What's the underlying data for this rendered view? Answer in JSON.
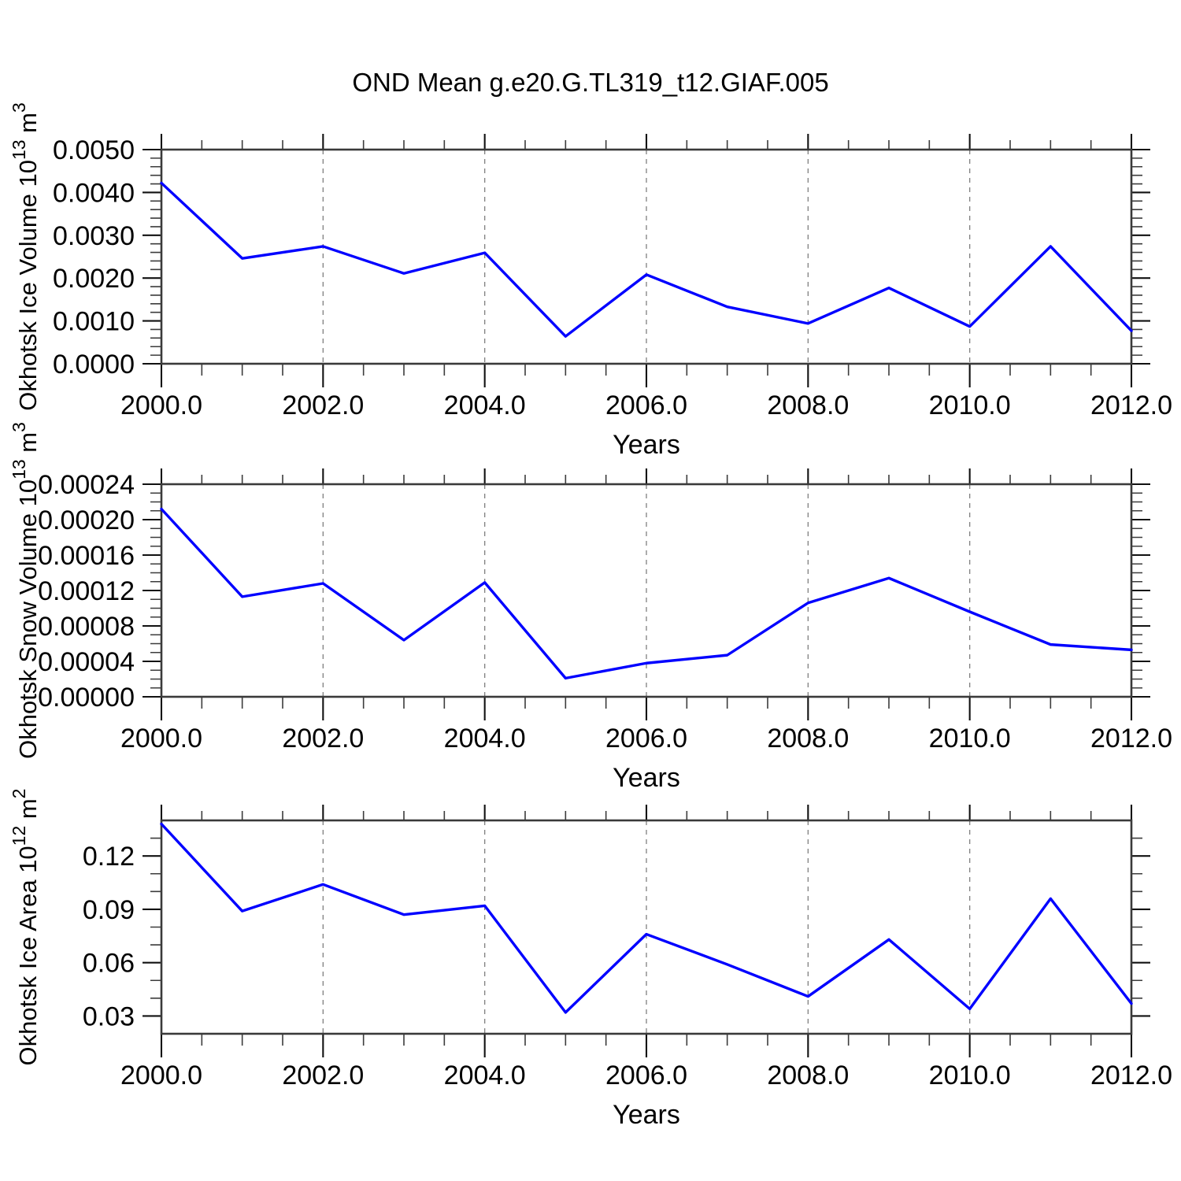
{
  "title": "OND Mean g.e20.G.TL319_t12.GIAF.005",
  "figure": {
    "background": "#ffffff",
    "line_color": "#0000ff",
    "grid_color": "#808080",
    "frame_color": "#3a3a3a",
    "tick_color": "#111111"
  },
  "chart_data": [
    {
      "type": "line",
      "id": "ice-volume",
      "ylabel": "Okhotsk Ice Volume 10^13 m^3",
      "ylabel_parts": [
        {
          "t": "Okhotsk Ice Volume 10"
        },
        {
          "t": "13",
          "sup": true
        },
        {
          "t": " m"
        },
        {
          "t": "3",
          "sup": true
        }
      ],
      "xlabel": "Years",
      "x": [
        2000,
        2001,
        2002,
        2003,
        2004,
        2005,
        2006,
        2007,
        2008,
        2009,
        2010,
        2011,
        2012
      ],
      "values": [
        0.00422,
        0.00246,
        0.00274,
        0.00211,
        0.00259,
        0.00064,
        0.00208,
        0.00133,
        0.00094,
        0.00177,
        0.00087,
        0.00274,
        0.00077
      ],
      "xlim": [
        2000,
        2012
      ],
      "ylim": [
        0,
        0.005
      ],
      "xticks": [
        2000,
        2002,
        2004,
        2006,
        2008,
        2010,
        2012
      ],
      "xtick_labels": [
        "2000.0",
        "2002.0",
        "2004.0",
        "2006.0",
        "2008.0",
        "2010.0",
        "2012.0"
      ],
      "yticks": [
        0,
        0.001,
        0.002,
        0.003,
        0.004,
        0.005
      ],
      "ytick_labels": [
        "0.0000",
        "0.0010",
        "0.0020",
        "0.0030",
        "0.0040",
        "0.0050"
      ],
      "x_minor_step": 0.5,
      "y_minor_step": 0.0002,
      "grid_x": [
        2002,
        2004,
        2006,
        2008,
        2010
      ],
      "line_color": "#0000ff",
      "grid": true
    },
    {
      "type": "line",
      "id": "snow-volume",
      "ylabel": "Okhotsk Snow Volume 10^13 m^3",
      "ylabel_parts": [
        {
          "t": "Okhotsk Snow Volume 10"
        },
        {
          "t": "13",
          "sup": true
        },
        {
          "t": " m"
        },
        {
          "t": "3",
          "sup": true
        }
      ],
      "xlabel": "Years",
      "x": [
        2000,
        2001,
        2002,
        2003,
        2004,
        2005,
        2006,
        2007,
        2008,
        2009,
        2010,
        2011,
        2012
      ],
      "values": [
        0.000212,
        0.000113,
        0.000128,
        6.4e-05,
        0.000129,
        2.1e-05,
        3.8e-05,
        4.7e-05,
        0.000106,
        0.000134,
        9.6e-05,
        5.9e-05,
        5.3e-05
      ],
      "xlim": [
        2000,
        2012
      ],
      "ylim": [
        0,
        0.00024
      ],
      "xticks": [
        2000,
        2002,
        2004,
        2006,
        2008,
        2010,
        2012
      ],
      "xtick_labels": [
        "2000.0",
        "2002.0",
        "2004.0",
        "2006.0",
        "2008.0",
        "2010.0",
        "2012.0"
      ],
      "yticks": [
        0,
        4e-05,
        8e-05,
        0.00012,
        0.00016,
        0.0002,
        0.00024
      ],
      "ytick_labels": [
        "0.00000",
        "0.00004",
        "0.00008",
        "0.00012",
        "0.00016",
        "0.00020",
        "0.00024"
      ],
      "x_minor_step": 0.5,
      "y_minor_step": 1e-05,
      "grid_x": [
        2002,
        2004,
        2006,
        2008,
        2010
      ],
      "line_color": "#0000ff",
      "grid": true
    },
    {
      "type": "line",
      "id": "ice-area",
      "ylabel": "Okhotsk Ice Area 10^12 m^2",
      "ylabel_parts": [
        {
          "t": "Okhotsk Ice Area 10"
        },
        {
          "t": "12",
          "sup": true
        },
        {
          "t": " m"
        },
        {
          "t": "2",
          "sup": true
        }
      ],
      "xlabel": "Years",
      "x": [
        2000,
        2001,
        2002,
        2003,
        2004,
        2005,
        2006,
        2007,
        2008,
        2009,
        2010,
        2011,
        2012
      ],
      "values": [
        0.138,
        0.089,
        0.104,
        0.087,
        0.092,
        0.032,
        0.076,
        0.059,
        0.041,
        0.073,
        0.034,
        0.096,
        0.037
      ],
      "xlim": [
        2000,
        2012
      ],
      "ylim": [
        0.02,
        0.14
      ],
      "xticks": [
        2000,
        2002,
        2004,
        2006,
        2008,
        2010,
        2012
      ],
      "xtick_labels": [
        "2000.0",
        "2002.0",
        "2004.0",
        "2006.0",
        "2008.0",
        "2010.0",
        "2012.0"
      ],
      "yticks": [
        0.03,
        0.06,
        0.09,
        0.12
      ],
      "ytick_labels": [
        "0.03",
        "0.06",
        "0.09",
        "0.12"
      ],
      "x_minor_step": 0.5,
      "y_minor_step": 0.01,
      "grid_x": [
        2002,
        2004,
        2006,
        2008,
        2010
      ],
      "line_color": "#0000ff",
      "grid": true
    }
  ]
}
